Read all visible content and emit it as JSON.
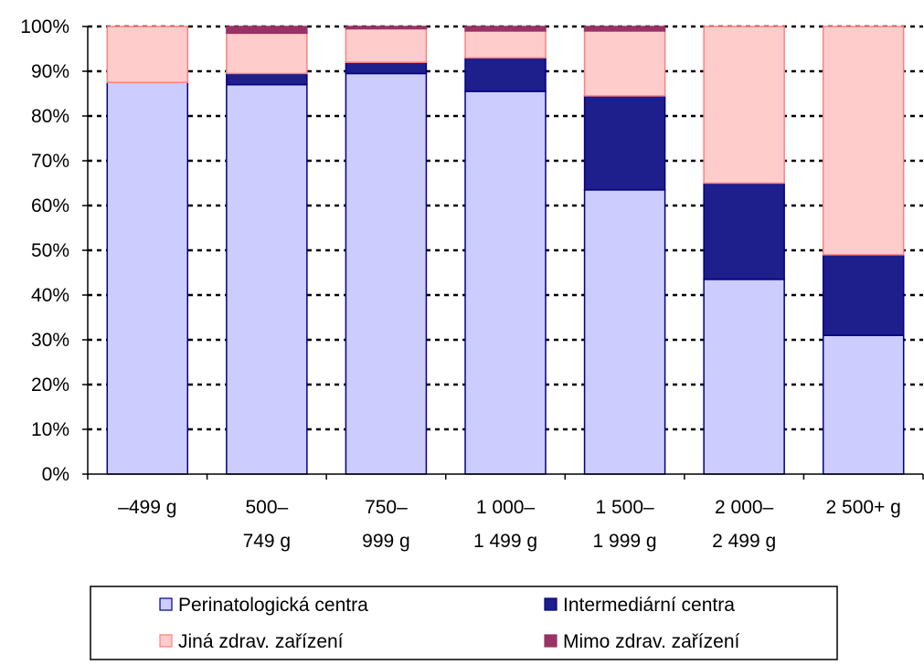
{
  "chart_data": {
    "type": "bar",
    "stacked": true,
    "percent": true,
    "title": "",
    "xlabel": "",
    "ylabel": "",
    "ylim": [
      0,
      100
    ],
    "y_ticks": [
      "0%",
      "10%",
      "20%",
      "30%",
      "40%",
      "50%",
      "60%",
      "70%",
      "80%",
      "90%",
      "100%"
    ],
    "grid": "horizontal dotted",
    "legend_position": "bottom",
    "categories": [
      [
        "–499 g"
      ],
      [
        "500–",
        "749 g"
      ],
      [
        "750–",
        "999 g"
      ],
      [
        "1 000–",
        "1 499 g"
      ],
      [
        "1 500–",
        "1 999 g"
      ],
      [
        "2 000–",
        "2 499 g"
      ],
      [
        "2 500+ g"
      ]
    ],
    "series": [
      {
        "name": "Perinatologická centra",
        "fill": "#ccccff",
        "stroke": "#000080",
        "values": [
          87.5,
          87,
          89.5,
          85.5,
          63.5,
          43.5,
          31
        ]
      },
      {
        "name": "Intermediární centra",
        "fill": "#1e1e8c",
        "stroke": "#000080",
        "values": [
          0,
          2.5,
          2.5,
          7.5,
          21,
          21.5,
          18
        ]
      },
      {
        "name": "Jiná zdrav. zařízení",
        "fill": "#ffcccc",
        "stroke": "#ff8080",
        "values": [
          12.5,
          9,
          7.5,
          6,
          14.5,
          35,
          51
        ]
      },
      {
        "name": "Mimo zdrav. zařízení",
        "fill": "#993366",
        "stroke": "#993366",
        "values": [
          0,
          1.5,
          0.5,
          1,
          1,
          0,
          0
        ]
      }
    ]
  }
}
